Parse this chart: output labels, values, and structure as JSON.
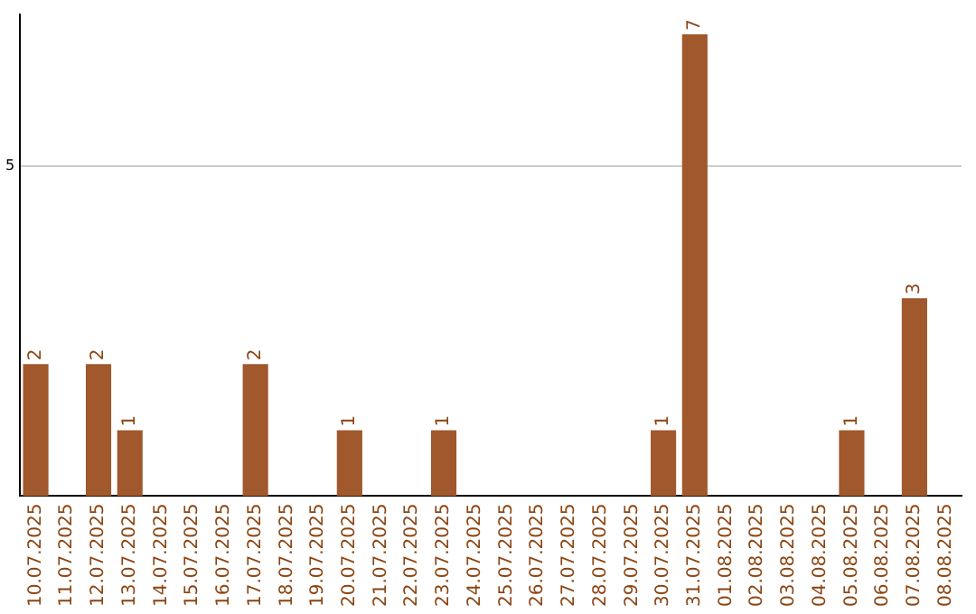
{
  "chart_data": {
    "type": "bar",
    "categories": [
      "10.07.2025",
      "11.07.2025",
      "12.07.2025",
      "13.07.2025",
      "14.07.2025",
      "15.07.2025",
      "16.07.2025",
      "17.07.2025",
      "18.07.2025",
      "19.07.2025",
      "20.07.2025",
      "21.07.2025",
      "22.07.2025",
      "23.07.2025",
      "24.07.2025",
      "25.07.2025",
      "26.07.2025",
      "27.07.2025",
      "28.07.2025",
      "29.07.2025",
      "30.07.2025",
      "31.07.2025",
      "01.08.2025",
      "02.08.2025",
      "03.08.2025",
      "04.08.2025",
      "05.08.2025",
      "06.08.2025",
      "07.08.2025",
      "08.08.2025"
    ],
    "values": [
      2,
      0,
      2,
      1,
      0,
      0,
      0,
      2,
      0,
      0,
      1,
      0,
      0,
      1,
      0,
      0,
      0,
      0,
      0,
      0,
      1,
      7,
      0,
      0,
      0,
      0,
      1,
      0,
      3,
      0
    ],
    "value_labels": [
      "2",
      null,
      "2",
      "1",
      null,
      null,
      null,
      "2",
      null,
      null,
      "1",
      null,
      null,
      "1",
      null,
      null,
      null,
      null,
      null,
      null,
      "1",
      "7",
      null,
      null,
      null,
      null,
      "1",
      null,
      "3",
      null
    ],
    "color": "#a0582c",
    "ylim": [
      0,
      7.3
    ],
    "yticks": [
      5
    ],
    "grid": "y",
    "legend": false
  }
}
